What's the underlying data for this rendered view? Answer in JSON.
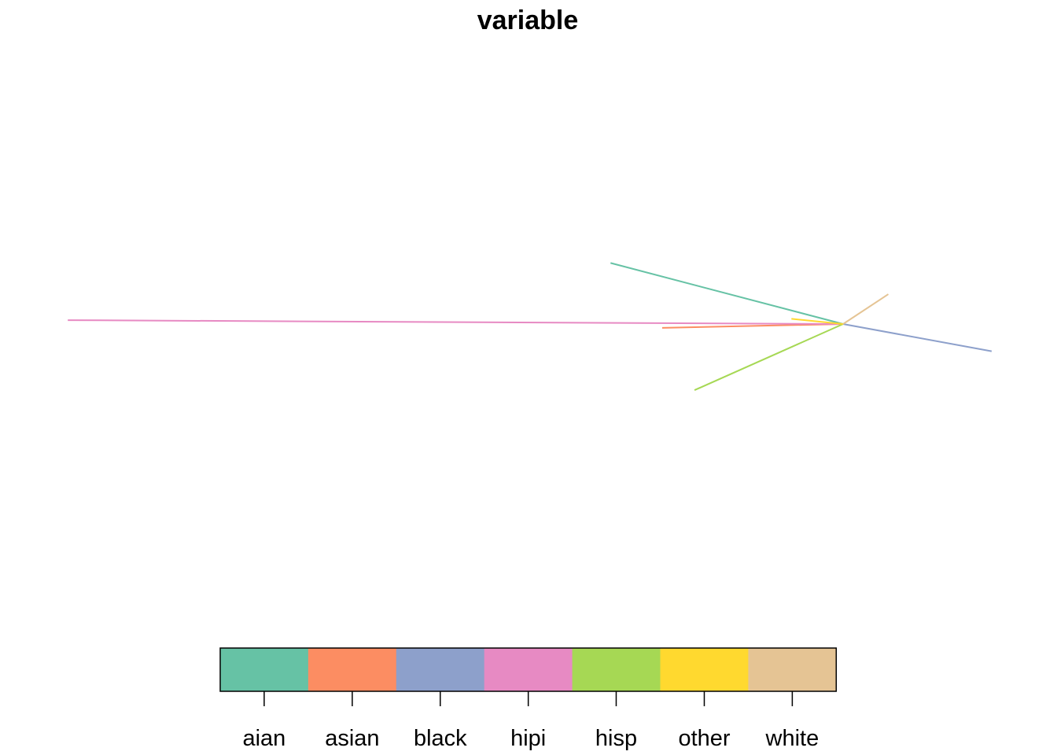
{
  "chart_data": {
    "type": "line",
    "title": "variable",
    "xlabel": "",
    "ylabel": "",
    "grid": false,
    "legend_position": "bottom",
    "hub": [
      0.0,
      0.0
    ],
    "series": [
      {
        "name": "aian",
        "color": "#66C2A5",
        "points": [
          [
            -1.8,
            0.47
          ],
          [
            0.0,
            0.0
          ]
        ]
      },
      {
        "name": "asian",
        "color": "#FC8D62",
        "points": [
          [
            -1.4,
            -0.03
          ],
          [
            0.0,
            0.0
          ]
        ]
      },
      {
        "name": "black",
        "color": "#8DA0CB",
        "points": [
          [
            1.15,
            -0.21
          ],
          [
            0.0,
            0.0
          ]
        ]
      },
      {
        "name": "hipi",
        "color": "#E78AC3",
        "points": [
          [
            -6.0,
            0.03
          ],
          [
            0.0,
            0.0
          ]
        ]
      },
      {
        "name": "hisp",
        "color": "#A6D854",
        "points": [
          [
            -1.15,
            -0.51
          ],
          [
            0.0,
            0.0
          ]
        ]
      },
      {
        "name": "other",
        "color": "#FFD92F",
        "points": [
          [
            -0.4,
            0.04
          ],
          [
            0.0,
            0.0
          ]
        ]
      },
      {
        "name": "white",
        "color": "#E5C494",
        "points": [
          [
            0.35,
            0.23
          ],
          [
            0.0,
            0.0
          ]
        ]
      }
    ],
    "legend": {
      "labels": [
        "aian",
        "asian",
        "black",
        "hipi",
        "hisp",
        "other",
        "white"
      ],
      "colors": [
        "#66C2A5",
        "#FC8D62",
        "#8DA0CB",
        "#E78AC3",
        "#A6D854",
        "#FFD92F",
        "#E5C494"
      ]
    }
  }
}
